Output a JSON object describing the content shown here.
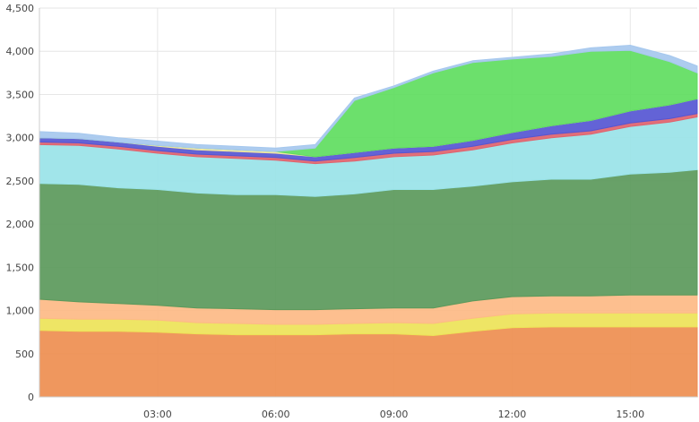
{
  "chart_data": {
    "type": "area",
    "stacked": true,
    "title": "",
    "xlabel": "",
    "ylabel": "",
    "x_tick_labels": [
      "03:00",
      "06:00",
      "09:00",
      "12:00",
      "15:00"
    ],
    "x_tick_hours": [
      3,
      6,
      9,
      12,
      15
    ],
    "x_range_hours": [
      0,
      16.7
    ],
    "ylim": [
      0,
      4500
    ],
    "y_ticks": [
      0,
      500,
      1000,
      1500,
      2000,
      2500,
      3000,
      3500,
      4000,
      4500
    ],
    "y_tick_labels": [
      "0",
      "500",
      "1,000",
      "1,500",
      "2,000",
      "2,500",
      "3,000",
      "3,500",
      "4,000",
      "4,500"
    ],
    "grid": true,
    "legend": "none",
    "x": [
      0,
      1,
      2,
      3,
      4,
      5,
      6,
      7,
      8,
      9,
      10,
      11,
      12,
      13,
      14,
      15,
      16,
      16.7
    ],
    "series": [
      {
        "color": "#ee8e50",
        "values": [
          770,
          760,
          760,
          750,
          730,
          720,
          720,
          720,
          730,
          730,
          710,
          760,
          800,
          810,
          810,
          810,
          810,
          810
        ]
      },
      {
        "color": "#ede358",
        "values": [
          140,
          140,
          140,
          140,
          130,
          130,
          120,
          120,
          120,
          130,
          140,
          150,
          160,
          160,
          160,
          160,
          160,
          160
        ]
      },
      {
        "color": "#fdba86",
        "values": [
          220,
          200,
          180,
          170,
          170,
          170,
          170,
          170,
          170,
          170,
          180,
          200,
          200,
          200,
          200,
          210,
          210,
          210
        ]
      },
      {
        "color": "#5b995b",
        "values": [
          1340,
          1360,
          1340,
          1340,
          1330,
          1320,
          1330,
          1310,
          1330,
          1370,
          1370,
          1330,
          1330,
          1350,
          1350,
          1400,
          1420,
          1450
        ]
      },
      {
        "color": "#99e3e8",
        "values": [
          450,
          450,
          450,
          420,
          420,
          420,
          400,
          380,
          380,
          380,
          400,
          420,
          450,
          480,
          520,
          550,
          580,
          610
        ]
      },
      {
        "color": "#e0636e",
        "values": [
          30,
          30,
          30,
          30,
          30,
          30,
          30,
          30,
          40,
          40,
          40,
          40,
          40,
          40,
          40,
          40,
          40,
          40
        ]
      },
      {
        "color": "#5656d2",
        "values": [
          50,
          50,
          50,
          50,
          50,
          50,
          50,
          50,
          60,
          60,
          60,
          70,
          80,
          100,
          120,
          140,
          160,
          170
        ]
      },
      {
        "color": "#f0e6a0",
        "values": [
          0,
          0,
          0,
          10,
          20,
          20,
          20,
          0,
          0,
          0,
          0,
          0,
          0,
          0,
          0,
          0,
          0,
          0
        ]
      },
      {
        "color": "#60dd60",
        "values": [
          0,
          0,
          0,
          0,
          0,
          0,
          0,
          100,
          600,
          700,
          850,
          900,
          850,
          800,
          800,
          700,
          500,
          300
        ]
      },
      {
        "color": "#a6c8ee",
        "values": [
          70,
          60,
          50,
          50,
          40,
          40,
          40,
          40,
          30,
          20,
          20,
          20,
          20,
          30,
          40,
          60,
          70,
          80
        ]
      }
    ]
  }
}
